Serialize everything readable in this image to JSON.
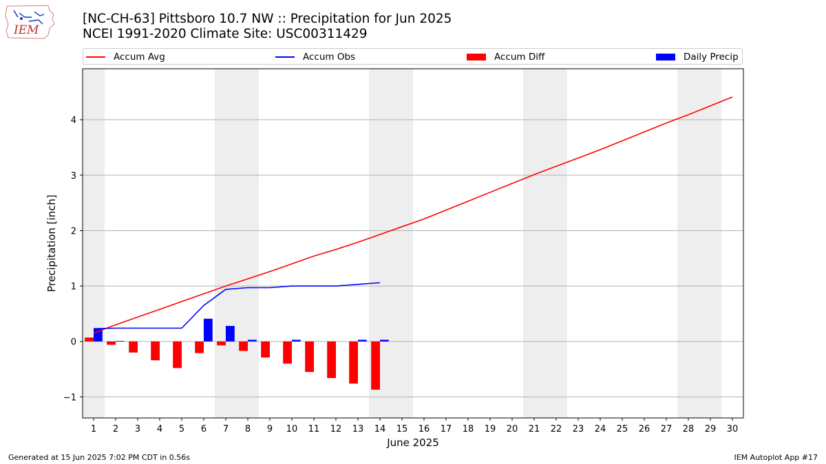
{
  "header": {
    "title_line1": "[NC-CH-63] Pittsboro 10.7 NW :: Precipitation for Jun 2025",
    "title_line2": "NCEI 1991-2020 Climate Site: USC00311429",
    "logo_text": "IEM"
  },
  "footer": {
    "generated": "Generated at 15 Jun 2025 7:02 PM CDT in 0.56s",
    "app": "IEM Autoplot App #17"
  },
  "colors": {
    "accum_avg": "#ff0000",
    "accum_obs": "#0000ff",
    "accum_diff": "#ff0000",
    "daily_precip": "#0000ff",
    "weekend_shade": "#eeeeee",
    "grid": "#b0b0b0"
  },
  "chart_data": {
    "type": "bar",
    "xlabel": "June 2025",
    "ylabel": "Precipitation [inch]",
    "xlim": [
      0.5,
      30.5
    ],
    "ylim": [
      -1.38,
      4.92
    ],
    "x_ticks": [
      1,
      2,
      3,
      4,
      5,
      6,
      7,
      8,
      9,
      10,
      11,
      12,
      13,
      14,
      15,
      16,
      17,
      18,
      19,
      20,
      21,
      22,
      23,
      24,
      25,
      26,
      27,
      28,
      29,
      30
    ],
    "y_ticks": [
      -1,
      0,
      1,
      2,
      3,
      4
    ],
    "y_tick_labels": [
      "−1",
      "0",
      "1",
      "2",
      "3",
      "4"
    ],
    "grid": "horizontal",
    "legend_position": "top",
    "weekend_days": [
      1,
      7,
      8,
      14,
      15,
      21,
      22,
      28,
      29
    ],
    "days": [
      1,
      2,
      3,
      4,
      5,
      6,
      7,
      8,
      9,
      10,
      11,
      12,
      13,
      14,
      15,
      16,
      17,
      18,
      19,
      20,
      21,
      22,
      23,
      24,
      25,
      26,
      27,
      28,
      29,
      30
    ],
    "series": [
      {
        "name": "Accum Avg",
        "kind": "line",
        "values": [
          0.15,
          0.3,
          0.44,
          0.58,
          0.72,
          0.86,
          1.0,
          1.13,
          1.26,
          1.4,
          1.54,
          1.66,
          1.79,
          1.93,
          2.07,
          2.21,
          2.37,
          2.53,
          2.69,
          2.85,
          3.01,
          3.16,
          3.31,
          3.46,
          3.62,
          3.78,
          3.94,
          4.09,
          4.25,
          4.41
        ]
      },
      {
        "name": "Accum Obs",
        "kind": "line",
        "values": [
          0.23,
          0.24,
          0.24,
          0.24,
          0.24,
          0.65,
          0.94,
          0.97,
          0.97,
          1.0,
          1.0,
          1.0,
          1.03,
          1.06
        ]
      },
      {
        "name": "Accum Diff",
        "kind": "bar",
        "values": [
          0.07,
          -0.06,
          -0.2,
          -0.34,
          -0.48,
          -0.21,
          -0.07,
          -0.17,
          -0.29,
          -0.4,
          -0.55,
          -0.66,
          -0.76,
          -0.87
        ]
      },
      {
        "name": "Daily Precip",
        "kind": "bar",
        "values": [
          0.23,
          0.01,
          0.0,
          0.0,
          0.0,
          0.41,
          0.28,
          0.03,
          0.0,
          0.03,
          0.0,
          0.0,
          0.03,
          0.03
        ]
      }
    ]
  }
}
